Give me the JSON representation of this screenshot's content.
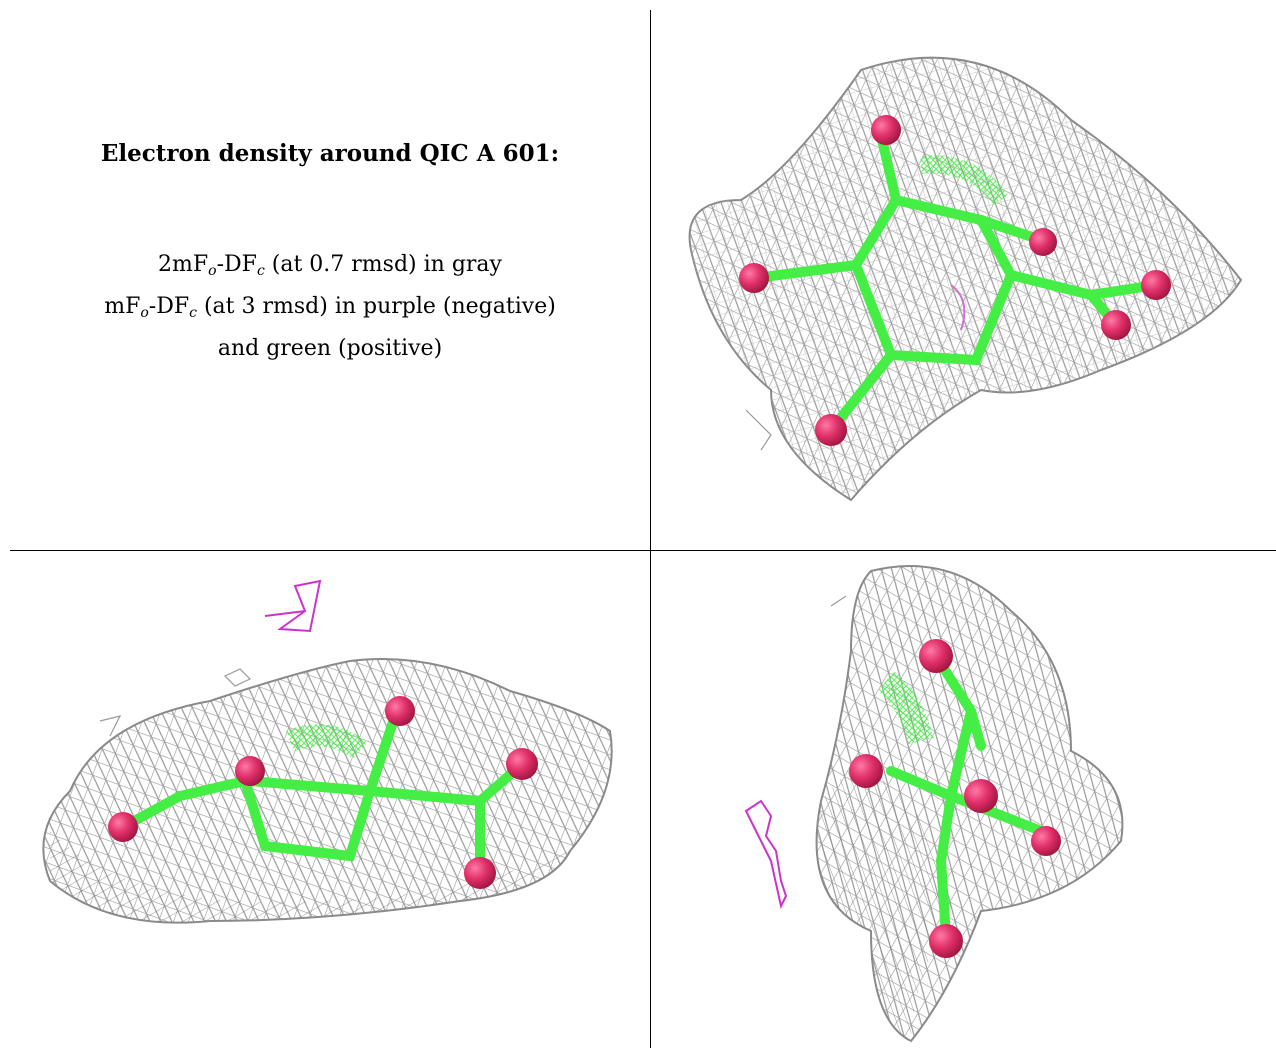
{
  "caption": {
    "title": "Electron density around QIC A 601:",
    "line1": {
      "a": "2mF",
      "a_sub": "o",
      "b": "-DF",
      "b_sub": "c",
      "rest": " (at 0.7 rmsd) in gray"
    },
    "line2": {
      "a": "mF",
      "a_sub": "o",
      "b": "-DF",
      "b_sub": "c",
      "rest": " (at 3 rmsd) in purple (negative)"
    },
    "line3": "and green (positive)"
  },
  "colors": {
    "mesh_gray": "#9a9a9a",
    "negative_purple": "#cc33cc",
    "positive_green": "#33ee33",
    "carbon_green": "#44ee44",
    "oxygen_red": "#e0306a",
    "border": "#000000"
  },
  "views": [
    {
      "name": "top-view",
      "icon": "molecule-density-view-icon"
    },
    {
      "name": "side-view",
      "icon": "molecule-density-view-icon"
    },
    {
      "name": "end-view",
      "icon": "molecule-density-view-icon"
    }
  ]
}
